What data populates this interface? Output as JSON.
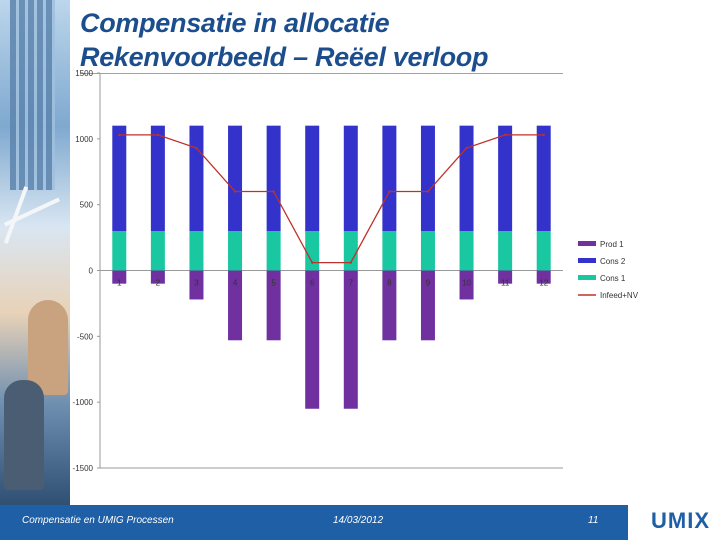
{
  "slide": {
    "title_line1": "Compensatie in allocatie",
    "title_line2": "Rekenvoorbeeld – Reëel verloop"
  },
  "footer": {
    "left": "Compensatie en UMIG Processen",
    "date": "14/03/2012",
    "page": "11",
    "logo": "UMIX"
  },
  "colors": {
    "prod": "#7030a0",
    "cons2": "#3333cc",
    "cons1": "#19c8a0",
    "line": "#c0302a",
    "footer": "#1f5fa6",
    "title": "#1c4d8c"
  },
  "chart_data": {
    "type": "bar",
    "stacked": true,
    "categories": [
      "1",
      "2",
      "3",
      "4",
      "5",
      "6",
      "7",
      "8",
      "9",
      "10",
      "11",
      "12"
    ],
    "series": [
      {
        "name": "Prod 1",
        "type": "bar",
        "color": "#7030a0",
        "values": [
          -100,
          -100,
          -220,
          -530,
          -530,
          -1050,
          -1050,
          -530,
          -530,
          -220,
          -100,
          -100
        ]
      },
      {
        "name": "Cons 2",
        "type": "bar",
        "color": "#3333cc",
        "values": [
          800,
          800,
          800,
          800,
          800,
          800,
          800,
          800,
          800,
          800,
          800,
          800
        ]
      },
      {
        "name": "Cons 1",
        "type": "bar",
        "color": "#19c8a0",
        "values": [
          300,
          300,
          300,
          300,
          300,
          300,
          300,
          300,
          300,
          300,
          300,
          300
        ]
      },
      {
        "name": "Infeed+NV",
        "type": "line",
        "color": "#c0302a",
        "values": [
          1030,
          1030,
          930,
          600,
          600,
          60,
          60,
          600,
          600,
          930,
          1030,
          1030
        ]
      }
    ],
    "ylim": [
      -1500,
      1500
    ],
    "yticks": [
      "-1500",
      "-1000",
      "-500",
      "0",
      "500",
      "1000",
      "1500"
    ],
    "legend_position": "right",
    "grid": false
  }
}
